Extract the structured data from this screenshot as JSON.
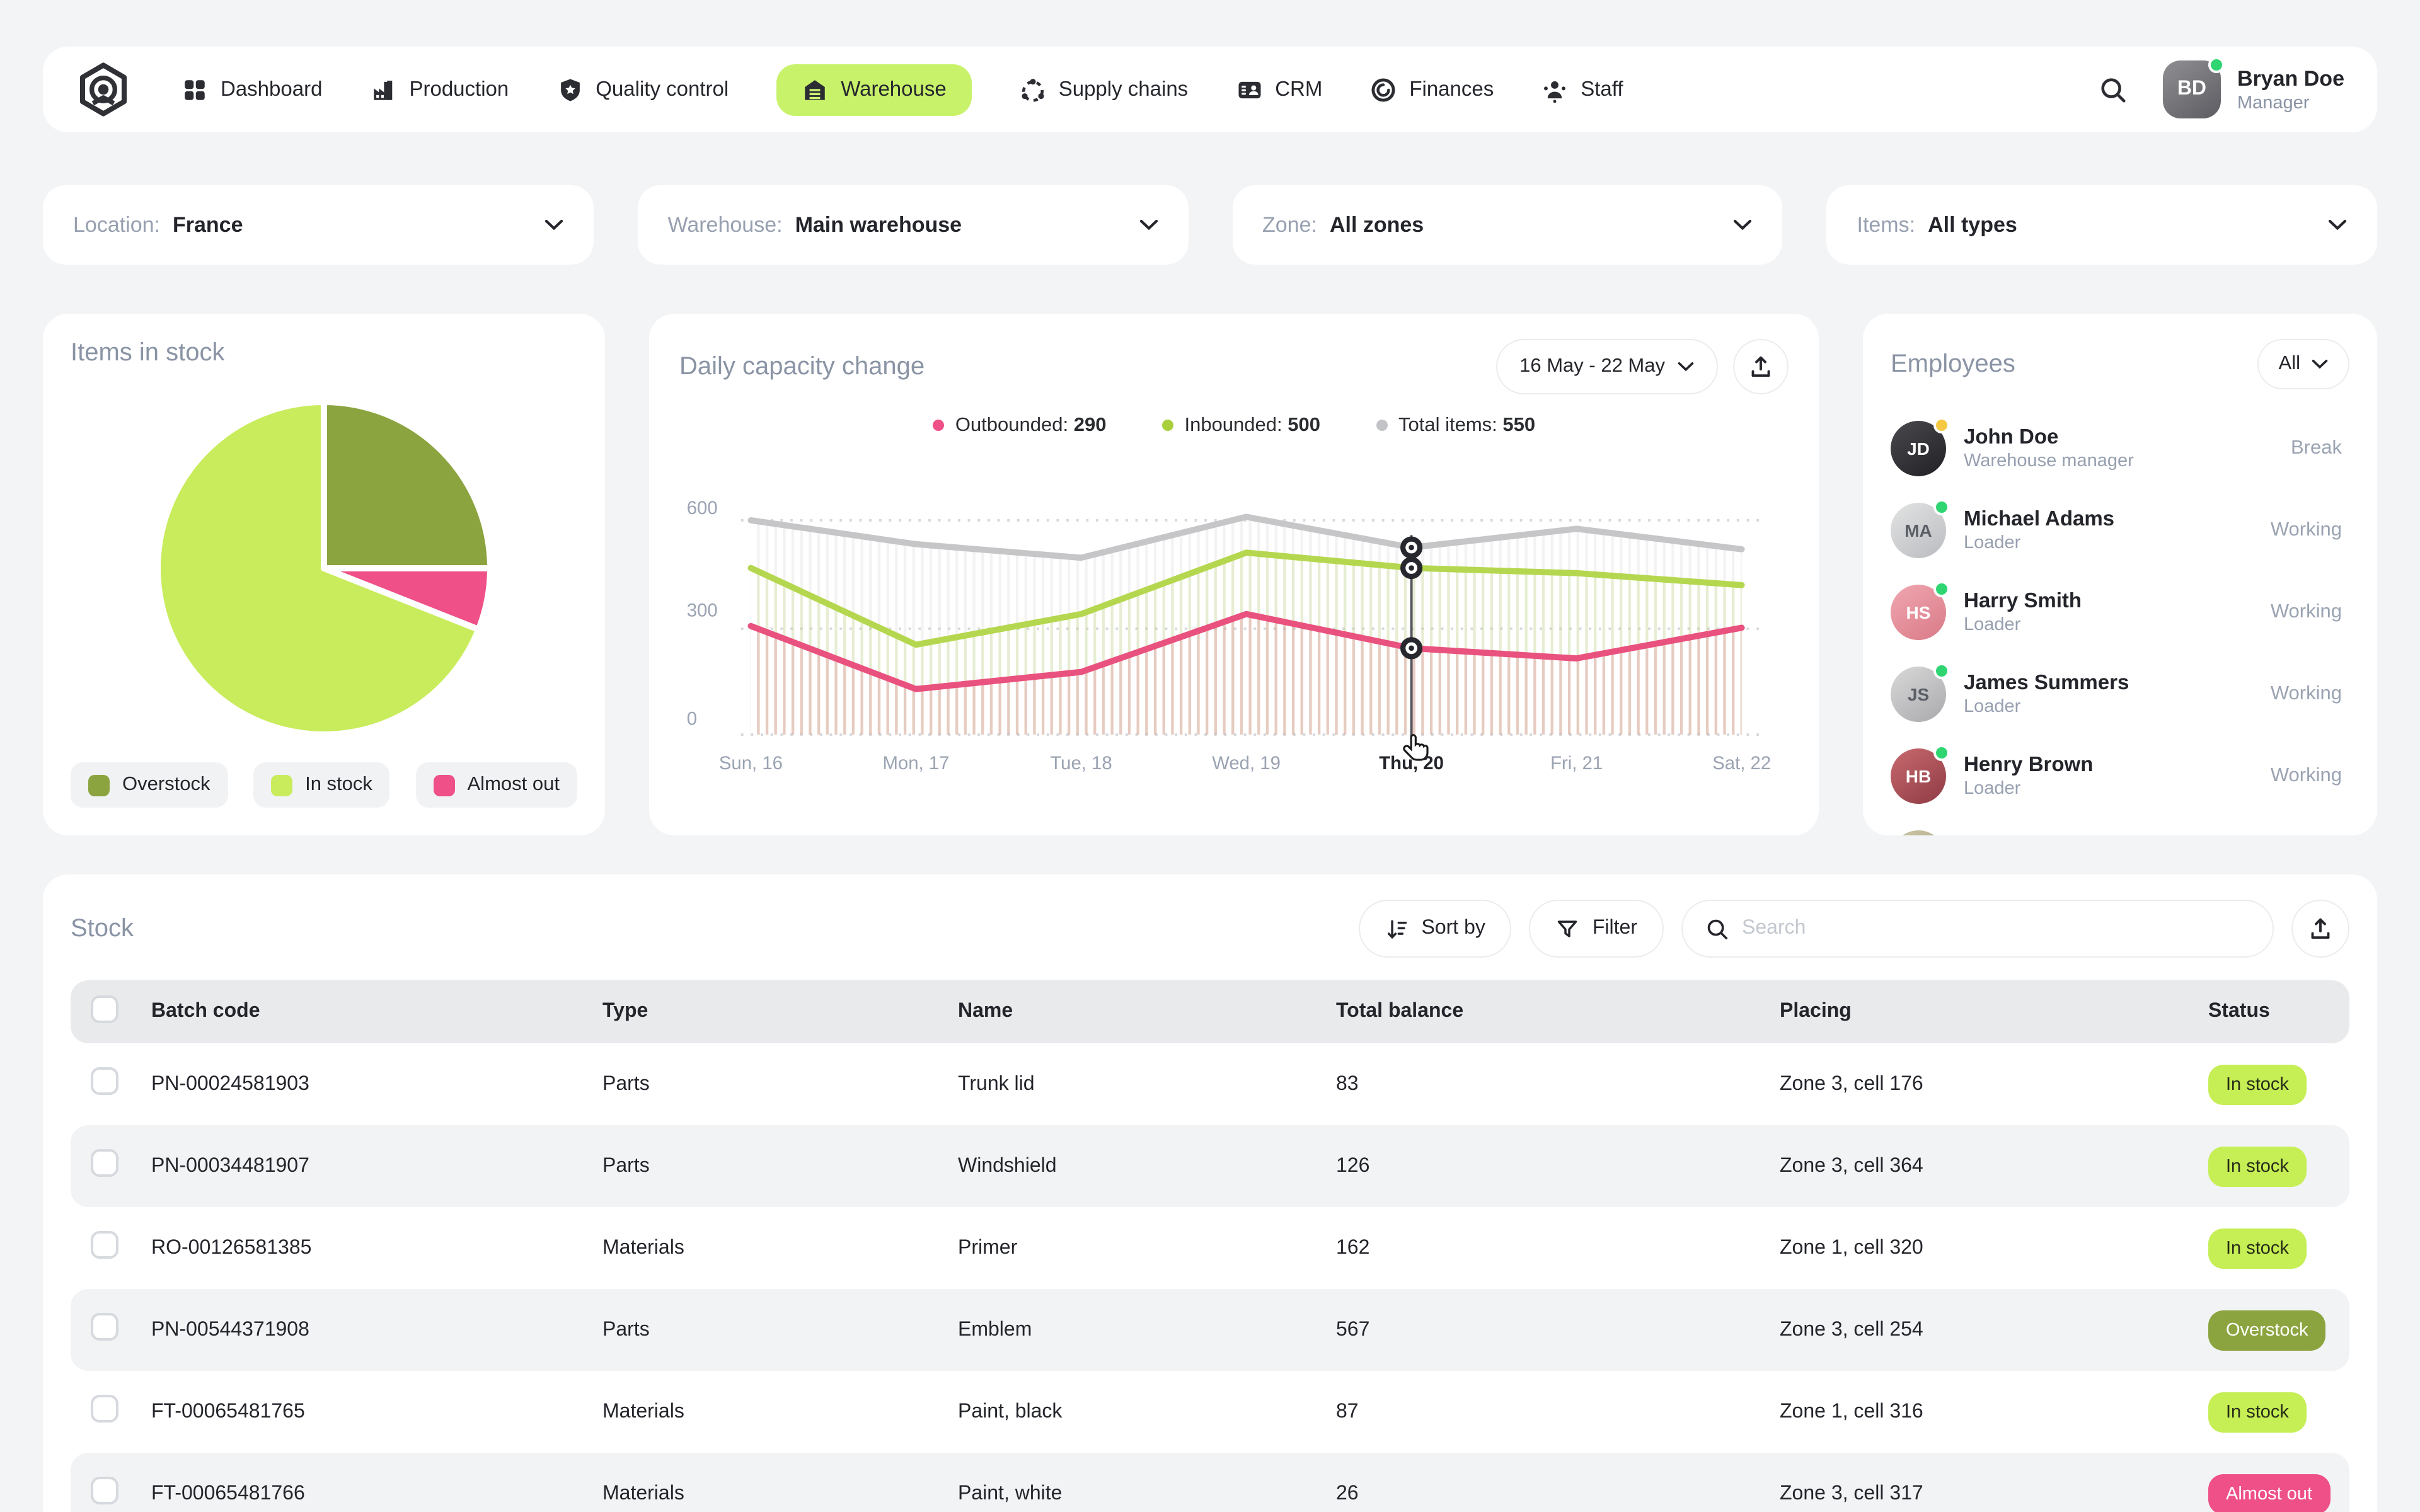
{
  "nav": {
    "items": [
      {
        "label": "Dashboard",
        "active": false
      },
      {
        "label": "Production",
        "active": false
      },
      {
        "label": "Quality control",
        "active": false
      },
      {
        "label": "Warehouse",
        "active": true
      },
      {
        "label": "Supply chains",
        "active": false
      },
      {
        "label": "CRM",
        "active": false
      },
      {
        "label": "Finances",
        "active": false
      },
      {
        "label": "Staff",
        "active": false
      }
    ],
    "user": {
      "name": "Bryan Doe",
      "role": "Manager",
      "initials": "BD"
    }
  },
  "filters": [
    {
      "label": "Location:",
      "value": "France"
    },
    {
      "label": "Warehouse:",
      "value": "Main warehouse"
    },
    {
      "label": "Zone:",
      "value": "All zones"
    },
    {
      "label": "Items:",
      "value": "All types"
    }
  ],
  "items_in_stock": {
    "title": "Items in stock",
    "legend": [
      {
        "label": "Overstock",
        "color": "#8ca43f"
      },
      {
        "label": "In stock",
        "color": "#c9ec5d"
      },
      {
        "label": "Almost out",
        "color": "#ee5087"
      }
    ]
  },
  "capacity": {
    "title": "Daily capacity change",
    "date_range": "16 May - 22 May",
    "legend": [
      {
        "label": "Outbounded:",
        "value": "290",
        "color": "#ee5087"
      },
      {
        "label": "Inbounded:",
        "value": "500",
        "color": "#a9cf3d"
      },
      {
        "label": "Total items:",
        "value": "550",
        "color": "#c2c3c7"
      }
    ]
  },
  "employees": {
    "title": "Employees",
    "filter_value": "All",
    "list": [
      {
        "name": "John Doe",
        "role": "Warehouse manager",
        "status": "Break",
        "initials": "JD",
        "dot": "#f6c944"
      },
      {
        "name": "Michael Adams",
        "role": "Loader",
        "status": "Working",
        "initials": "MA",
        "dot": "#2fd571"
      },
      {
        "name": "Harry Smith",
        "role": "Loader",
        "status": "Working",
        "initials": "HS",
        "dot": "#2fd571"
      },
      {
        "name": "James Summers",
        "role": "Loader",
        "status": "Working",
        "initials": "JS",
        "dot": "#2fd571"
      },
      {
        "name": "Henry Brown",
        "role": "Loader",
        "status": "Working",
        "initials": "HB",
        "dot": "#2fd571"
      }
    ]
  },
  "stock": {
    "title": "Stock",
    "toolbar": {
      "sort": "Sort by",
      "filter": "Filter",
      "search_placeholder": "Search"
    },
    "columns": [
      "Batch code",
      "Type",
      "Name",
      "Total balance",
      "Placing",
      "Status"
    ],
    "rows": [
      {
        "batch": "PN-00024581903",
        "type": "Parts",
        "name": "Trunk lid",
        "balance": "83",
        "placing": "Zone 3, cell 176",
        "status": "In stock",
        "badge": "lime"
      },
      {
        "batch": "PN-00034481907",
        "type": "Parts",
        "name": "Windshield",
        "balance": "126",
        "placing": "Zone 3, cell 364",
        "status": "In stock",
        "badge": "lime"
      },
      {
        "batch": "RO-00126581385",
        "type": "Materials",
        "name": "Primer",
        "balance": "162",
        "placing": "Zone 1, cell 320",
        "status": "In stock",
        "badge": "lime"
      },
      {
        "batch": "PN-00544371908",
        "type": "Parts",
        "name": "Emblem",
        "balance": "567",
        "placing": "Zone 3, cell 254",
        "status": "Overstock",
        "badge": "olive"
      },
      {
        "batch": "FT-00065481765",
        "type": "Materials",
        "name": "Paint, black",
        "balance": "87",
        "placing": "Zone 1, cell 316",
        "status": "In stock",
        "badge": "lime"
      },
      {
        "batch": "FT-00065481766",
        "type": "Materials",
        "name": "Paint, white",
        "balance": "26",
        "placing": "Zone 3, cell 317",
        "status": "Almost out",
        "badge": "pink"
      }
    ]
  },
  "chart_data": [
    {
      "type": "pie",
      "title": "Items in stock",
      "slices": [
        {
          "label": "Overstock",
          "pct": 25,
          "color": "#8ca43f"
        },
        {
          "label": "Almost out",
          "pct": 6,
          "color": "#ee5087"
        },
        {
          "label": "In stock",
          "pct": 69,
          "color": "#c9ec5d"
        }
      ],
      "start": "12-oclock-clockwise",
      "legend_position": "bottom"
    },
    {
      "type": "line",
      "title": "Daily capacity change",
      "categories": [
        "Sun, 16",
        "Mon, 17",
        "Tue, 18",
        "Wed, 19",
        "Thu, 20",
        "Fri, 21",
        "Sat, 22"
      ],
      "series": [
        {
          "name": "Total items",
          "color": "#c6c6c9",
          "values": [
            600,
            530,
            490,
            610,
            520,
            575,
            515
          ]
        },
        {
          "name": "Inbounded",
          "color": "#b5d74f",
          "values": [
            460,
            235,
            325,
            505,
            460,
            445,
            410
          ]
        },
        {
          "name": "Outbounded",
          "color": "#e9517e",
          "values": [
            290,
            105,
            155,
            325,
            225,
            195,
            285
          ]
        }
      ],
      "ylim": [
        0,
        650
      ],
      "yticks": [
        600,
        300,
        0
      ],
      "grid": "dotted-horizontal",
      "highlight_index": 4,
      "highlight_label": "Thu, 20"
    }
  ]
}
